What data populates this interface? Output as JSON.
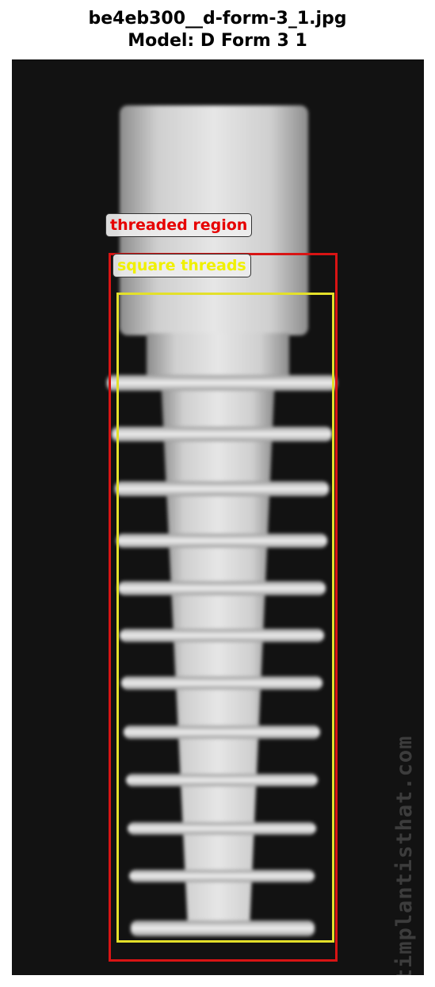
{
  "header": {
    "filename": "be4eb300__d-form-3_1.jpg",
    "model_line": "Model: D Form 3 1"
  },
  "annotations": [
    {
      "label": "threaded region",
      "color": "#d81414"
    },
    {
      "label": "square threads",
      "color": "#f0f000"
    }
  ],
  "image": {
    "watermark": "whatimplantisthat.com",
    "subject": "dental implant x-ray with square threads"
  }
}
